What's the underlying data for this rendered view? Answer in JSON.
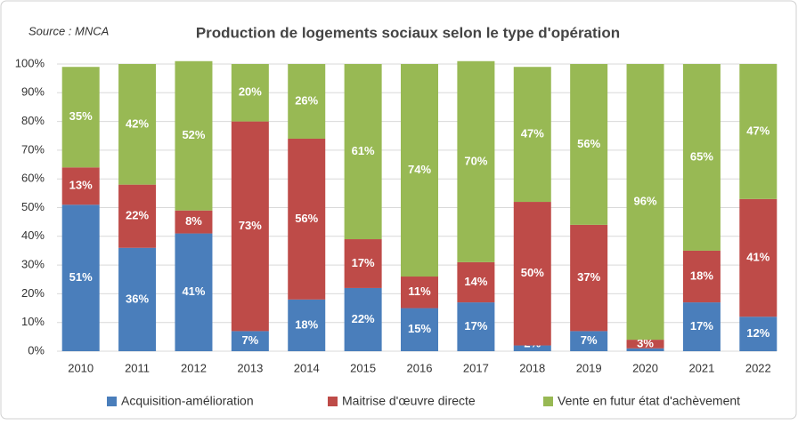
{
  "chart_data": {
    "type": "stacked_bar",
    "title": "Production de logements sociaux selon le type d'opération",
    "source": "Source : MNCA",
    "categories": [
      "2010",
      "2011",
      "2012",
      "2013",
      "2014",
      "2015",
      "2016",
      "2017",
      "2018",
      "2019",
      "2020",
      "2021",
      "2022"
    ],
    "series": [
      {
        "name": "Acquisition-amélioration",
        "color": "#4a7ebb",
        "values": [
          51,
          36,
          41,
          7,
          18,
          22,
          15,
          17,
          2,
          7,
          1,
          17,
          12
        ],
        "value_labels": [
          "51%",
          "36%",
          "41%",
          "7%",
          "18%",
          "22%",
          "15%",
          "17%",
          "2%",
          "7%",
          "1%",
          "17%",
          "12%"
        ]
      },
      {
        "name": "Maitrise d'œuvre directe",
        "color": "#be4b48",
        "values": [
          13,
          22,
          8,
          73,
          56,
          17,
          11,
          14,
          50,
          37,
          3,
          18,
          41
        ],
        "value_labels": [
          "13%",
          "22%",
          "8%",
          "73%",
          "56%",
          "17%",
          "11%",
          "14%",
          "50%",
          "37%",
          "3%",
          "18%",
          "41%"
        ]
      },
      {
        "name": "Vente en futur état d'achèvement",
        "color": "#98b954",
        "values": [
          35,
          42,
          52,
          20,
          26,
          61,
          74,
          70,
          47,
          56,
          96,
          65,
          47
        ],
        "value_labels": [
          "35%",
          "42%",
          "52%",
          "20%",
          "26%",
          "61%",
          "74%",
          "70%",
          "47%",
          "56%",
          "96%",
          "65%",
          "47%"
        ]
      }
    ],
    "ylim": [
      0,
      100
    ],
    "yticks": [
      {
        "value": 0,
        "label": "0%"
      },
      {
        "value": 10,
        "label": "10%"
      },
      {
        "value": 20,
        "label": "20%"
      },
      {
        "value": 30,
        "label": "30%"
      },
      {
        "value": 40,
        "label": "40%"
      },
      {
        "value": 50,
        "label": "50%"
      },
      {
        "value": 60,
        "label": "60%"
      },
      {
        "value": 70,
        "label": "70%"
      },
      {
        "value": 80,
        "label": "80%"
      },
      {
        "value": 90,
        "label": "90%"
      },
      {
        "value": 100,
        "label": "100%"
      }
    ],
    "grid": true,
    "legend": "bottom"
  }
}
